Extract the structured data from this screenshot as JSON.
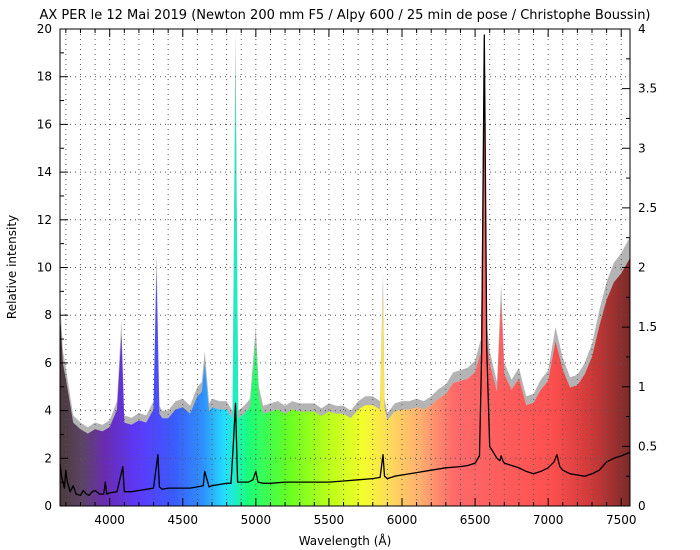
{
  "chart_data": {
    "type": "area",
    "title": "AX PER le 12 Mai 2019 (Newton 200 mm F5 / Alpy 600 / 25 min de pose / Christophe Boussin)",
    "xlabel": "Wavelength (Å)",
    "ylabel": "Relative intensity",
    "xlim": [
      3660,
      7560
    ],
    "ylim": [
      0,
      20
    ],
    "y2lim": [
      0,
      4
    ],
    "x_ticks": [
      4000,
      4500,
      5000,
      5500,
      6000,
      6500,
      7000,
      7500
    ],
    "y_ticks": [
      0,
      2,
      4,
      6,
      8,
      10,
      12,
      14,
      16,
      18,
      20
    ],
    "y2_ticks": [
      0,
      0.5,
      1,
      1.5,
      2,
      2.5,
      3,
      3.5,
      4
    ],
    "grid": true,
    "series": [
      {
        "role": "area",
        "axis": "left",
        "color": "#b4b4b4",
        "x": [
          3660,
          3680,
          3700,
          3720,
          3750,
          3800,
          3850,
          3900,
          3950,
          4000,
          4050,
          4080,
          4100,
          4150,
          4200,
          4250,
          4300,
          4320,
          4330,
          4340,
          4360,
          4400,
          4450,
          4500,
          4550,
          4600,
          4630,
          4650,
          4680,
          4700,
          4750,
          4800,
          4840,
          4861,
          4880,
          4920,
          4960,
          5000,
          5020,
          5050,
          5100,
          5150,
          5200,
          5250,
          5300,
          5350,
          5400,
          5450,
          5500,
          5550,
          5600,
          5650,
          5700,
          5750,
          5800,
          5850,
          5870,
          5880,
          5900,
          5950,
          6000,
          6050,
          6100,
          6150,
          6200,
          6250,
          6300,
          6350,
          6400,
          6450,
          6500,
          6540,
          6563,
          6580,
          6600,
          6650,
          6678,
          6700,
          6750,
          6800,
          6850,
          6900,
          6950,
          7000,
          7050,
          7100,
          7150,
          7200,
          7250,
          7300,
          7350,
          7400,
          7450,
          7500,
          7560
        ],
        "values": [
          8.8,
          6.5,
          5.8,
          5.0,
          3.8,
          3.5,
          3.3,
          3.5,
          3.4,
          3.6,
          4.4,
          7.8,
          3.8,
          3.7,
          3.9,
          3.8,
          4.4,
          10.7,
          7.5,
          4.2,
          4.0,
          4.0,
          4.4,
          4.5,
          4.2,
          5.0,
          5.2,
          6.5,
          4.3,
          4.5,
          4.4,
          4.4,
          4.0,
          20.0,
          4.0,
          4.2,
          4.5,
          7.5,
          5.0,
          4.2,
          4.3,
          4.4,
          4.2,
          4.4,
          4.3,
          4.3,
          4.3,
          4.1,
          4.3,
          4.2,
          4.2,
          4.0,
          4.4,
          4.6,
          4.6,
          4.4,
          9.8,
          4.5,
          3.9,
          4.3,
          4.4,
          4.4,
          4.5,
          4.4,
          4.6,
          4.9,
          5.1,
          5.6,
          5.7,
          5.8,
          6.1,
          7.0,
          20.0,
          7.6,
          6.5,
          5.2,
          9.3,
          6.0,
          5.3,
          5.8,
          4.6,
          4.7,
          5.3,
          5.7,
          7.5,
          6.2,
          5.4,
          5.5,
          6.0,
          6.8,
          8.2,
          9.4,
          10.2,
          10.6,
          11.3
        ]
      },
      {
        "role": "line",
        "axis": "right",
        "color": "#000000",
        "x": [
          3660,
          3670,
          3690,
          3700,
          3710,
          3730,
          3750,
          3770,
          3800,
          3820,
          3840,
          3860,
          3880,
          3900,
          3930,
          3960,
          3970,
          3980,
          4000,
          4050,
          4090,
          4100,
          4150,
          4200,
          4250,
          4300,
          4330,
          4340,
          4360,
          4400,
          4450,
          4500,
          4550,
          4600,
          4640,
          4650,
          4680,
          4700,
          4750,
          4800,
          4830,
          4845,
          4861,
          4875,
          4900,
          4950,
          4980,
          5000,
          5015,
          5050,
          5100,
          5200,
          5300,
          5400,
          5500,
          5600,
          5700,
          5800,
          5850,
          5870,
          5880,
          5900,
          5950,
          6000,
          6100,
          6200,
          6300,
          6400,
          6450,
          6500,
          6530,
          6545,
          6563,
          6580,
          6600,
          6650,
          6670,
          6678,
          6690,
          6700,
          6750,
          6800,
          6850,
          6900,
          6950,
          7000,
          7040,
          7060,
          7080,
          7100,
          7150,
          7200,
          7250,
          7300,
          7350,
          7400,
          7450,
          7500,
          7560
        ],
        "values": [
          0.35,
          0.25,
          0.15,
          0.3,
          0.2,
          0.12,
          0.17,
          0.1,
          0.09,
          0.13,
          0.1,
          0.09,
          0.12,
          0.13,
          0.1,
          0.1,
          0.2,
          0.1,
          0.11,
          0.12,
          0.33,
          0.12,
          0.12,
          0.13,
          0.14,
          0.15,
          0.43,
          0.16,
          0.14,
          0.15,
          0.15,
          0.15,
          0.15,
          0.16,
          0.17,
          0.29,
          0.16,
          0.17,
          0.18,
          0.19,
          0.19,
          0.5,
          0.86,
          0.2,
          0.2,
          0.2,
          0.22,
          0.29,
          0.2,
          0.19,
          0.19,
          0.2,
          0.2,
          0.2,
          0.2,
          0.21,
          0.22,
          0.23,
          0.24,
          0.43,
          0.25,
          0.23,
          0.25,
          0.26,
          0.28,
          0.3,
          0.32,
          0.33,
          0.34,
          0.36,
          0.42,
          1.3,
          3.95,
          1.3,
          0.5,
          0.4,
          0.38,
          0.42,
          0.38,
          0.36,
          0.34,
          0.32,
          0.29,
          0.27,
          0.29,
          0.32,
          0.37,
          0.43,
          0.33,
          0.3,
          0.27,
          0.26,
          0.25,
          0.27,
          0.3,
          0.37,
          0.4,
          0.42,
          0.45
        ]
      }
    ]
  }
}
